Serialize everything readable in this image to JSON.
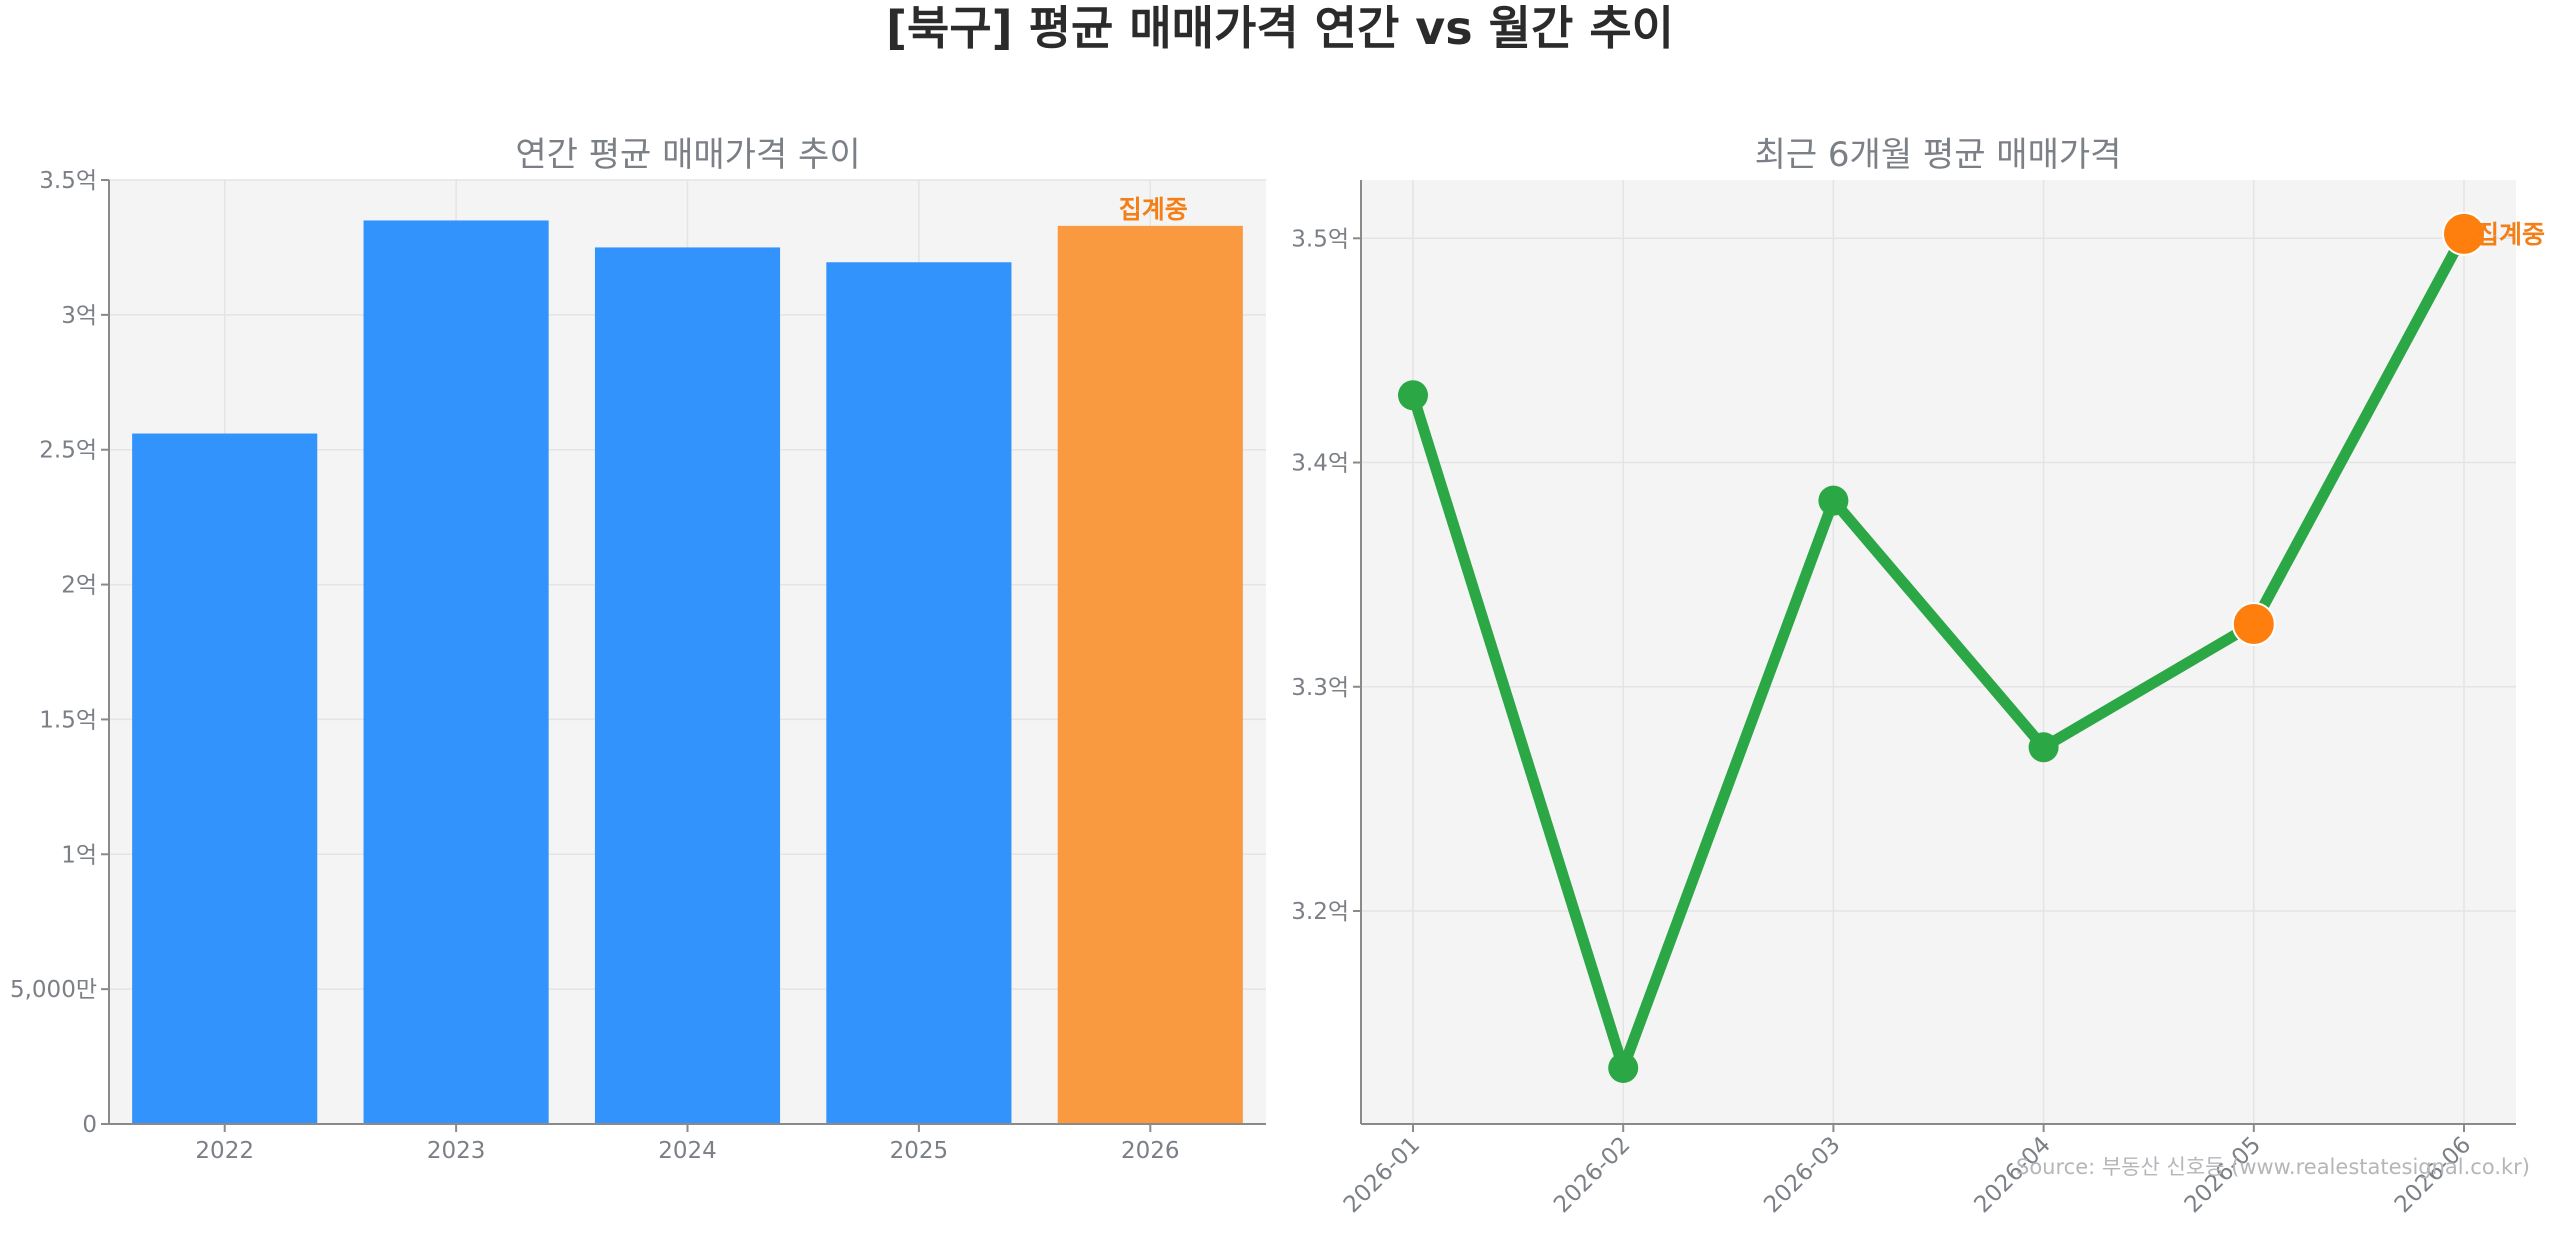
{
  "title": "[북구] 평균 매매가격 연간 vs 월간 추이",
  "source": "Source: 부동산 신호등 (www.realestatesignal.co.kr)",
  "colors": {
    "bar": "#3193fb",
    "bar_partial": "#f99a40",
    "line": "#2ba745",
    "highlight": "#ff7f0e",
    "annotation": "#f47f17"
  },
  "chart_data": [
    {
      "type": "bar",
      "title": "연간 평균 매매가격 추이",
      "categories": [
        "2022",
        "2023",
        "2024",
        "2025",
        "2026"
      ],
      "values": [
        25600,
        33500,
        32500,
        31950,
        33300
      ],
      "partial": [
        false,
        false,
        false,
        false,
        true
      ],
      "annotation": {
        "category": "2026",
        "text": "집계중"
      },
      "ylim": [
        0,
        35000
      ],
      "yticks": [
        0,
        5000,
        10000,
        15000,
        20000,
        25000,
        30000,
        35000
      ],
      "ytick_labels": [
        "0",
        "5,000만",
        "1억",
        "1.5억",
        "2억",
        "2.5억",
        "3억",
        "3.5억"
      ],
      "grid": true
    },
    {
      "type": "line",
      "title": "최근 6개월 평균 매매가격",
      "x": [
        "2026-01",
        "2026-02",
        "2026-03",
        "2026-04",
        "2026-05",
        "2026-06"
      ],
      "values": [
        34300,
        31300,
        33830,
        32730,
        33280,
        35020
      ],
      "highlight": [
        false,
        false,
        false,
        false,
        true,
        true
      ],
      "annotation": {
        "x": "2026-06",
        "text": "집계중"
      },
      "ylim": [
        31050,
        35260
      ],
      "yticks": [
        32000,
        33000,
        34000,
        35000
      ],
      "ytick_labels": [
        "3.2억",
        "3.3억",
        "3.4억",
        "3.5억"
      ],
      "grid": true
    }
  ]
}
